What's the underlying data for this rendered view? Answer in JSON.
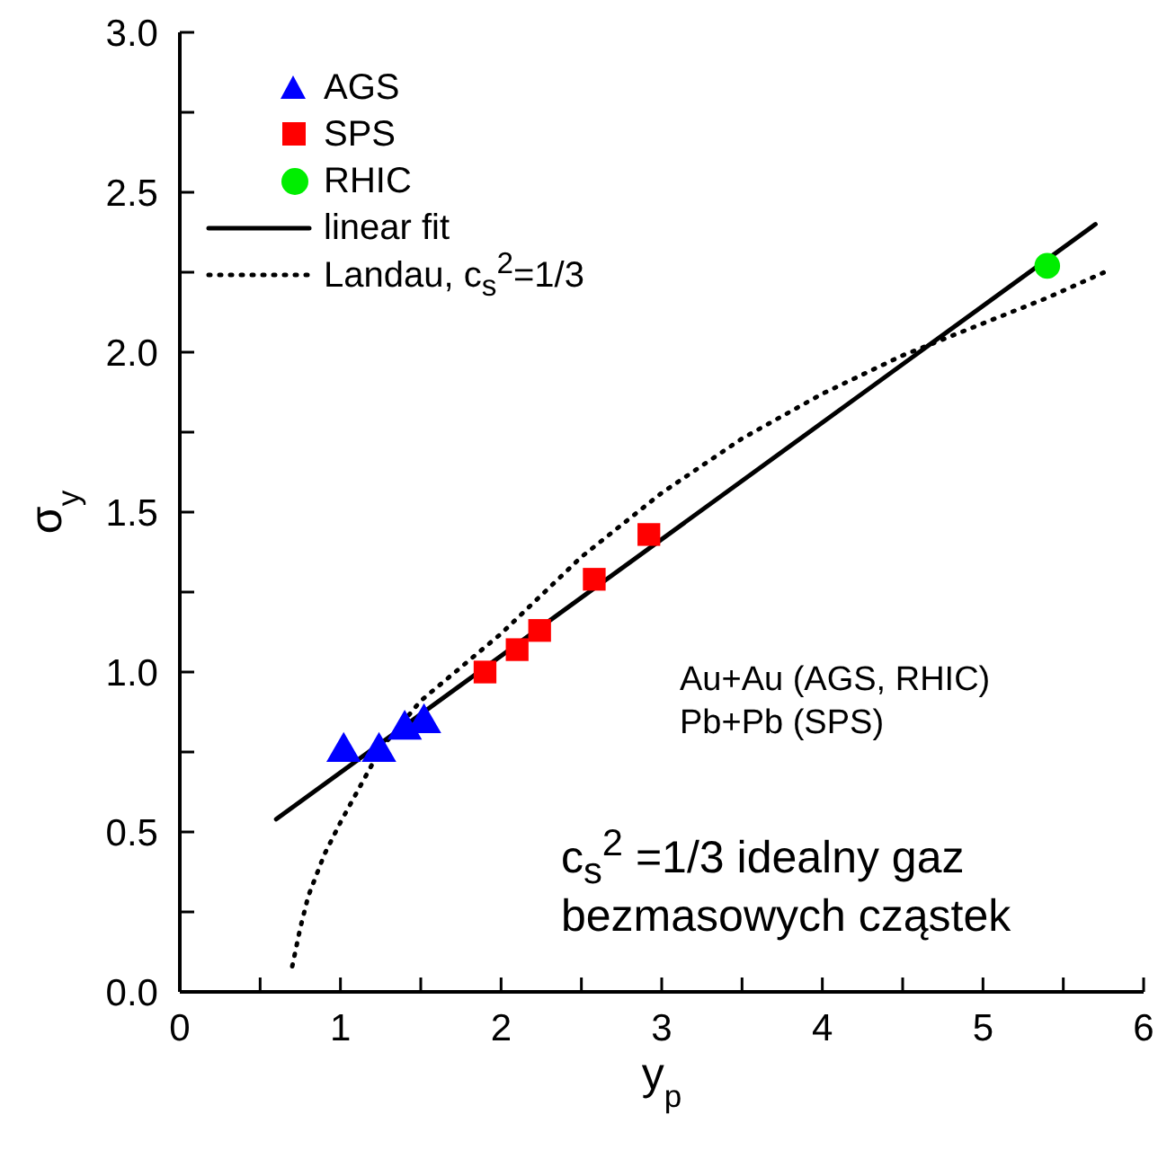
{
  "chart_data": {
    "type": "scatter",
    "xlabel": "y$_{p}$",
    "ylabel": "σ$_{y}$",
    "xlim": [
      0,
      6
    ],
    "xticks": [
      0,
      {
        "value": 0.5,
        "label": null
      },
      1,
      {
        "value": 1.5,
        "label": null
      },
      2,
      {
        "value": 2.5,
        "label": null
      },
      3,
      {
        "value": 3.5,
        "label": null
      },
      4,
      {
        "value": 4.5,
        "label": null
      },
      5,
      {
        "value": 5.5,
        "label": null
      },
      6
    ],
    "ylim": [
      0,
      3
    ],
    "yticks": [
      "0.0",
      {
        "value": 0.25,
        "label": null
      },
      {
        "value": 0.5,
        "label": "0.5"
      },
      {
        "value": 0.75,
        "label": null
      },
      {
        "value": 1,
        "label": "1.0"
      },
      {
        "value": 1.25,
        "label": null
      },
      {
        "value": 1.5,
        "label": "1.5"
      },
      {
        "value": 1.75,
        "label": null
      },
      {
        "value": 2,
        "label": "2.0"
      },
      {
        "value": 2.25,
        "label": null
      },
      {
        "value": 2.5,
        "label": "2.5"
      },
      {
        "value": 2.75,
        "label": null
      },
      {
        "value": 3,
        "label": "3.0"
      }
    ],
    "grid": false,
    "legend": "top left",
    "series": [
      {
        "name": "AGS",
        "marker": "triangle",
        "color": "#0000ff",
        "x": [
          1.02,
          1.24,
          1.4,
          1.52
        ],
        "values": [
          0.75,
          0.75,
          0.82,
          0.84
        ]
      },
      {
        "name": "SPS",
        "marker": "square",
        "color": "#ff0000",
        "x": [
          1.9,
          2.1,
          2.24,
          2.58,
          2.92
        ],
        "values": [
          1.0,
          1.07,
          1.13,
          1.29,
          1.43
        ]
      },
      {
        "name": "RHIC",
        "marker": "circle",
        "color": "#00ee00",
        "x": [
          5.4
        ],
        "values": [
          2.27
        ]
      },
      {
        "name": "linear fit",
        "type": "line",
        "marker": "none",
        "line_style": "solid",
        "color": "#000000",
        "x": [
          0.6,
          5.7
        ],
        "values": [
          0.54,
          2.4
        ]
      },
      {
        "name": "Landau, c$_{s}$$^{2}$=1/3",
        "type": "line",
        "marker": "none",
        "line_style": "dotted",
        "color": "#000000",
        "x": [
          0.7,
          0.75,
          0.8,
          0.9,
          1.0,
          1.25,
          1.5,
          2.0,
          2.5,
          3.0,
          3.5,
          4.0,
          4.5,
          5.0,
          5.4,
          5.8
        ],
        "values": [
          0.08,
          0.2,
          0.3,
          0.43,
          0.53,
          0.76,
          0.91,
          1.12,
          1.36,
          1.56,
          1.73,
          1.87,
          1.99,
          2.09,
          2.17,
          2.26
        ]
      }
    ],
    "annotations": [
      "Au+Au (AGS, RHIC)",
      "Pb+Pb (SPS)",
      "c$_{s}$$^{2}$ =1/3 idealny gaz",
      "bezmasowych cząstek"
    ]
  }
}
